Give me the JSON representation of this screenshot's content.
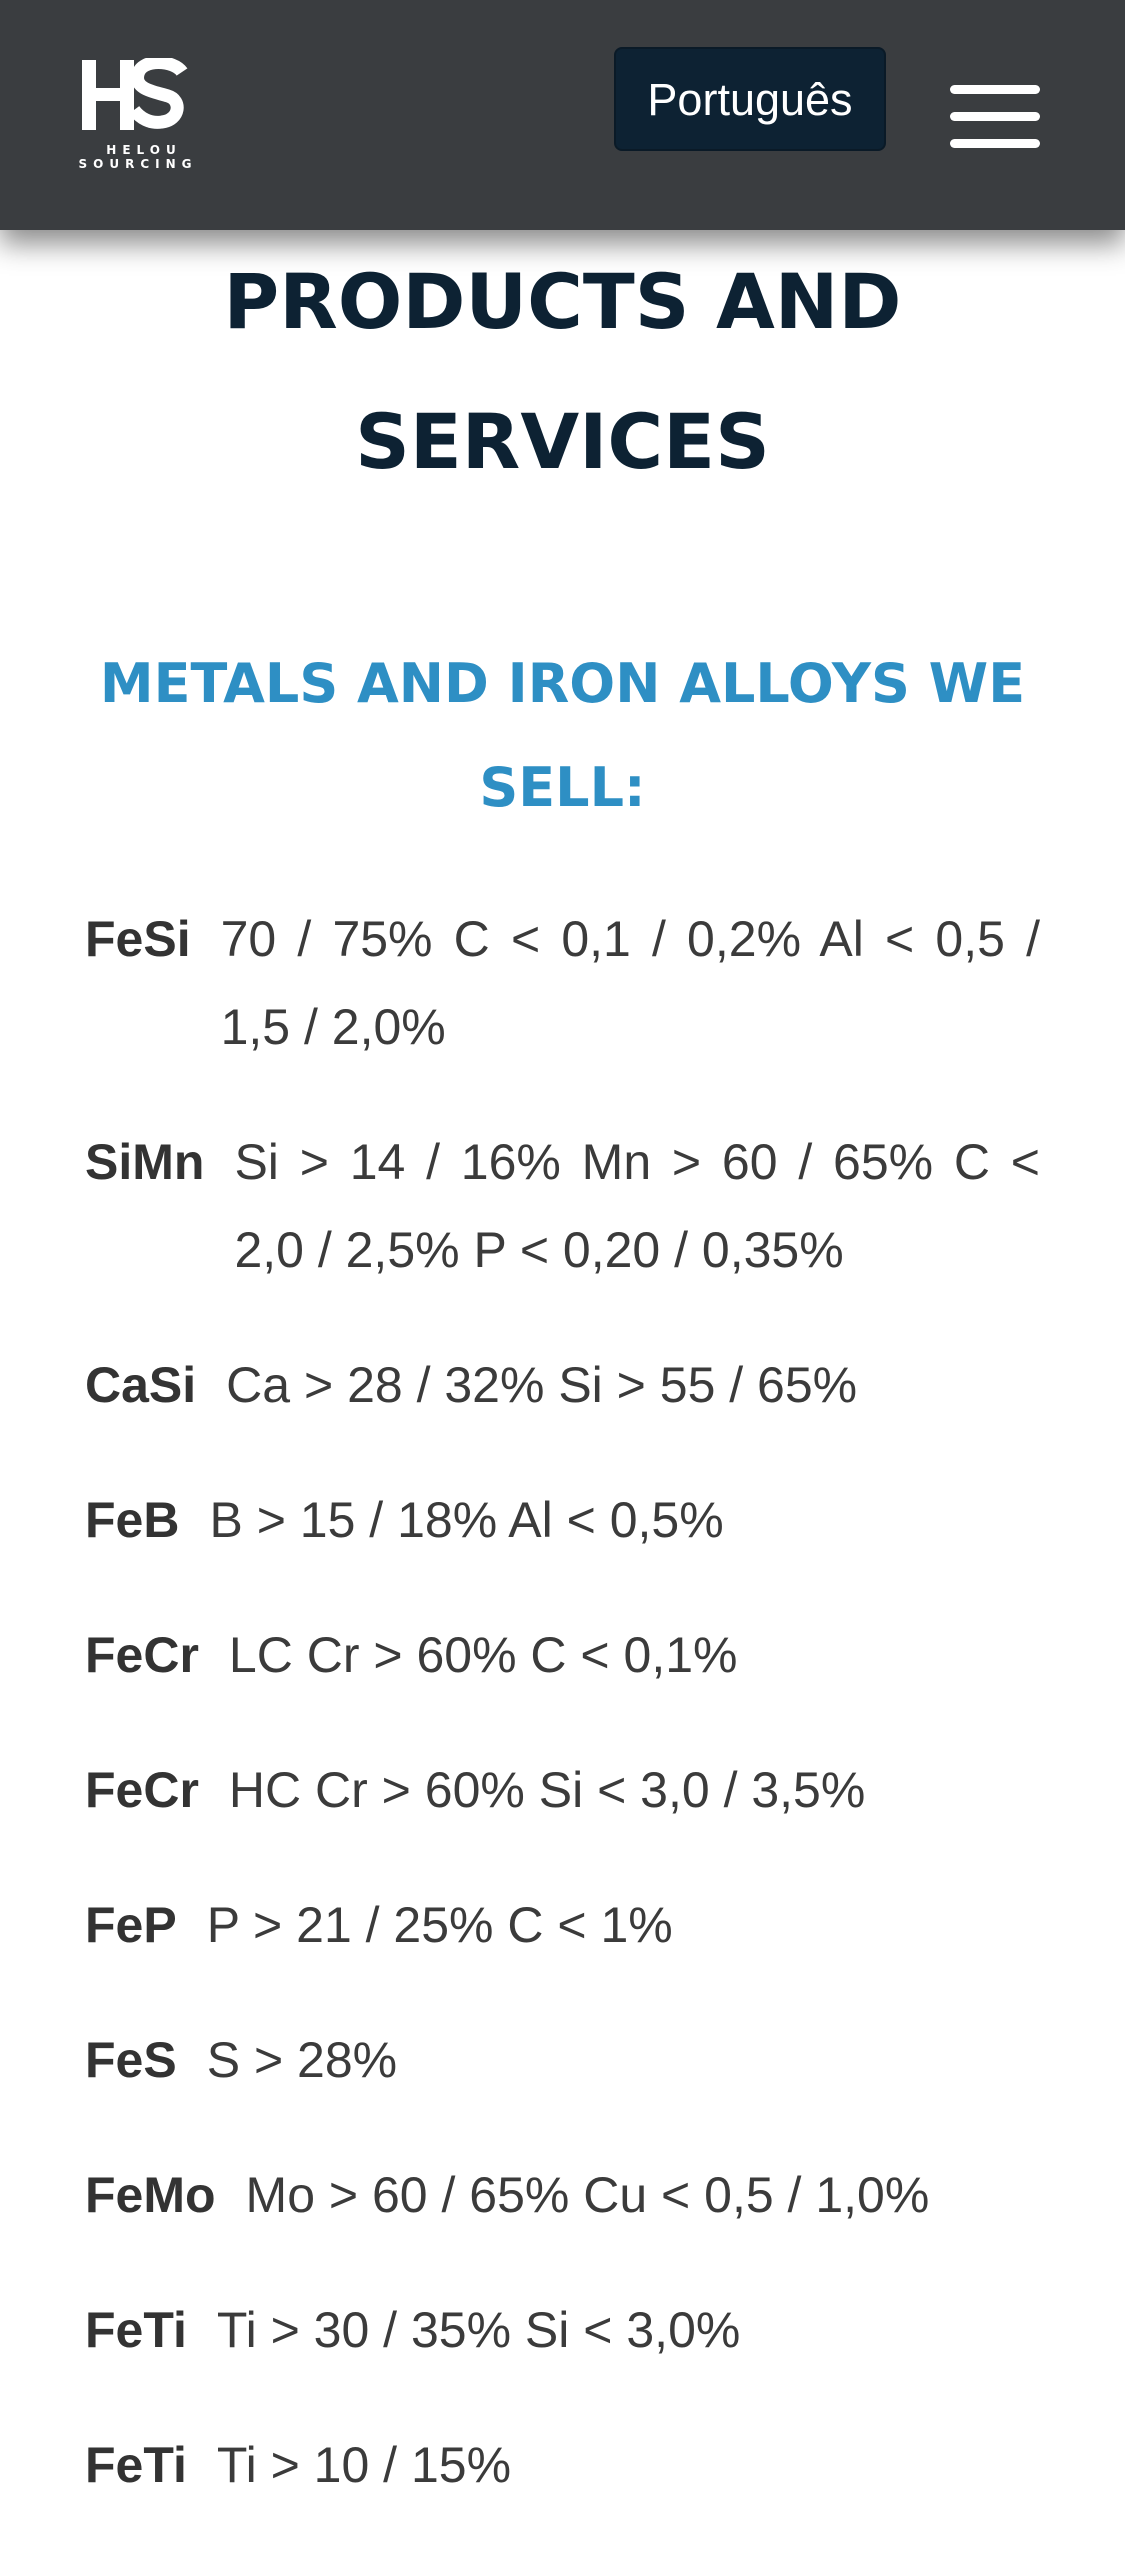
{
  "header": {
    "logo": {
      "mark": "HS",
      "line1": "HELOU",
      "line2": "SOURCING"
    },
    "language_button": "Português",
    "menu_icon": "hamburger-menu-icon"
  },
  "page_title": "PRODUCTS AND SERVICES",
  "section_title": "METALS AND IRON ALLOYS WE SELL:",
  "products": [
    {
      "name": "FeSi",
      "spec": "70 / 75% C < 0,1 / 0,2% Al < 0,5 / 1,5 / 2,0%"
    },
    {
      "name": "SiMn",
      "spec": "Si > 14 / 16% Mn > 60 / 65% C < 2,0 / 2,5% P < 0,20 / 0,35%"
    },
    {
      "name": "CaSi",
      "spec": "Ca > 28 / 32% Si > 55 / 65%"
    },
    {
      "name": "FeB",
      "spec": "B > 15 / 18% Al < 0,5%"
    },
    {
      "name": "FeCr",
      "spec": "LC Cr > 60% C < 0,1%"
    },
    {
      "name": "FeCr",
      "spec": "HC Cr > 60% Si < 3,0 / 3,5%"
    },
    {
      "name": "FeP",
      "spec": "P > 21 / 25% C < 1%"
    },
    {
      "name": "FeS",
      "spec": "S > 28%"
    },
    {
      "name": "FeMo",
      "spec": "Mo > 60 / 65% Cu < 0,5 / 1,0%"
    },
    {
      "name": "FeTi",
      "spec": "Ti > 30 / 35% Si < 3,0%"
    },
    {
      "name": "FeTi",
      "spec": "Ti > 10 / 15%"
    }
  ],
  "colors": {
    "header_bg": "#3a3d40",
    "button_bg": "#0d2233",
    "title": "#0d2233",
    "section_title": "#2e8fc4",
    "body_text": "#3b3b3b"
  }
}
